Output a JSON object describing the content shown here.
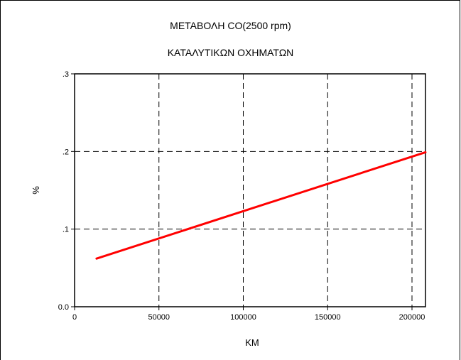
{
  "chart_data": {
    "type": "line",
    "title": "ΜΕΤΑΒΟΛΗ CO(2500 rpm)",
    "subtitle": "ΚΑΤΑΛΥΤΙΚΩΝ ΟΧΗΜΑΤΩΝ",
    "xlabel": "KM",
    "ylabel": "%",
    "xlim": [
      0,
      208000
    ],
    "ylim": [
      0,
      0.3
    ],
    "xticks": [
      0,
      50000,
      100000,
      150000,
      200000
    ],
    "xtick_labels": [
      "0",
      "50000",
      "100000",
      "150000",
      "200000"
    ],
    "yticks": [
      0,
      0.1,
      0.2,
      0.3
    ],
    "ytick_labels": [
      "0.0",
      ".1",
      ".2",
      ".3"
    ],
    "grid": true,
    "grid_style": "dashed",
    "series": [
      {
        "color": "#ff0000",
        "x": [
          13000,
          208000
        ],
        "y": [
          0.062,
          0.199
        ]
      }
    ]
  }
}
